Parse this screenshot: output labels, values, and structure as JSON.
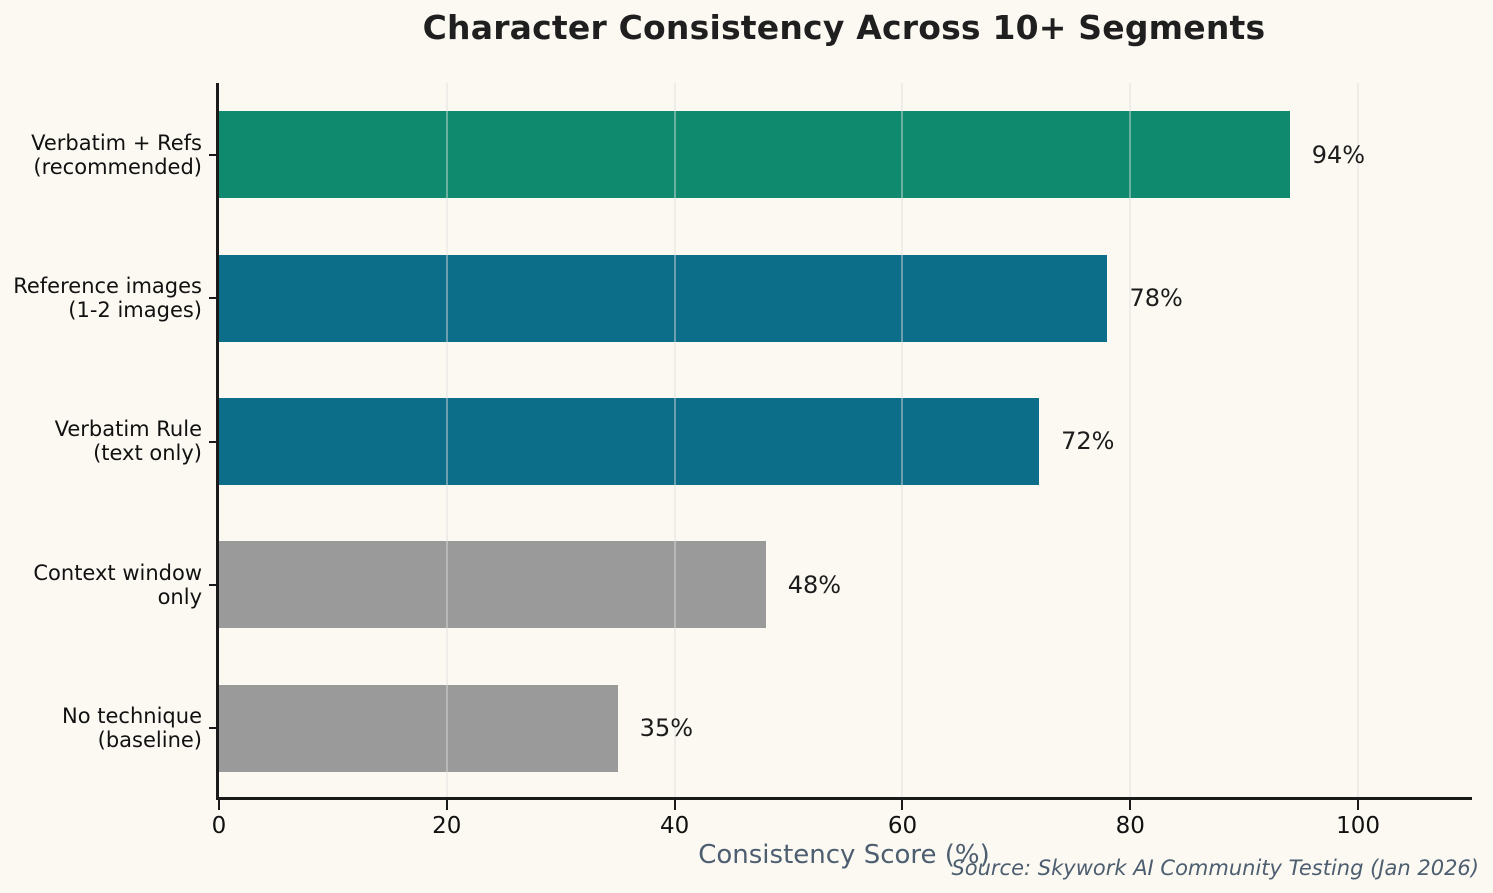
{
  "chart_data": {
    "type": "bar",
    "orientation": "horizontal",
    "title": "Character Consistency Across 10+ Segments",
    "xlabel": "Consistency Score (%)",
    "ylabel": "",
    "categories": [
      "Verbatim + Refs\n(recommended)",
      "Reference images\n(1-2 images)",
      "Verbatim Rule\n(text only)",
      "Context window\nonly",
      "No technique\n(baseline)"
    ],
    "values": [
      94,
      78,
      72,
      48,
      35
    ],
    "value_labels": [
      "94%",
      "78%",
      "72%",
      "48%",
      "35%"
    ],
    "bar_colors": [
      "#0f8a6e",
      "#0d6e8a",
      "#0d6e8a",
      "#9a9a9a",
      "#9a9a9a"
    ],
    "xlim": [
      0,
      110
    ],
    "xticks": [
      0,
      20,
      40,
      60,
      80,
      100
    ],
    "xtick_labels": [
      "0",
      "20",
      "40",
      "60",
      "80",
      "100"
    ],
    "grid": true,
    "legend": null,
    "source": "Source: Skywork AI Community Testing (Jan 2026)",
    "colors": {
      "background": "#fbf9f2",
      "highlight_green": "#0f8a6e",
      "teal": "#0d6e8a",
      "baseline_gray": "#9a9a9a",
      "axis": "#1a1a1a",
      "secondary_text": "#4d5e70"
    }
  }
}
